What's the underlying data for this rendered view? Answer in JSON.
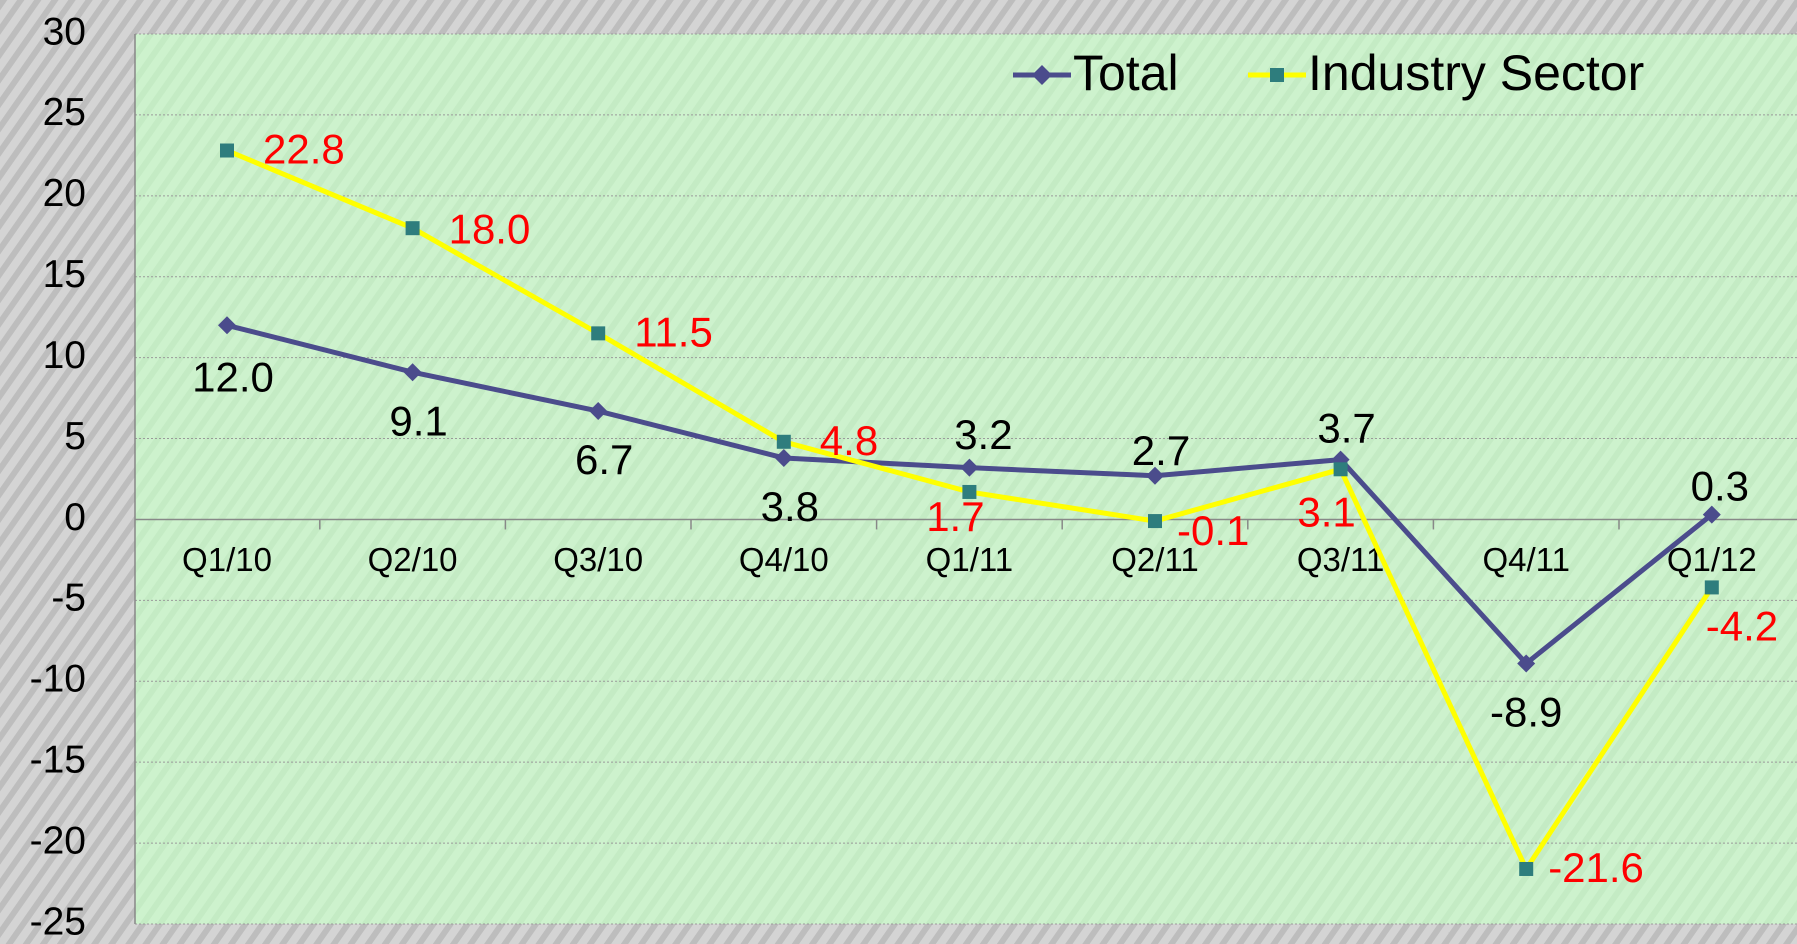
{
  "chart_data": {
    "type": "line",
    "categories": [
      "Q1/10",
      "Q2/10",
      "Q3/10",
      "Q4/10",
      "Q1/11",
      "Q2/11",
      "Q3/11",
      "Q4/11",
      "Q1/12"
    ],
    "series": [
      {
        "name": "Total",
        "color": "#4b4c8c",
        "marker_color": "#4b4c8c",
        "label_color": "#000000",
        "values": [
          12,
          9.1,
          6.7,
          3.8,
          3.2,
          2.7,
          3.7,
          -8.9,
          0.3
        ],
        "value_labels": [
          "12.0",
          "9.1",
          "6.7",
          "3.8",
          "3.2",
          "2.7",
          "3.7",
          "-8.9",
          "0.3"
        ]
      },
      {
        "name": "Industry Sector",
        "color": "#ffff00",
        "marker_color": "#2e7d7d",
        "label_color": "#ff0000",
        "values": [
          22.8,
          18,
          11.5,
          4.8,
          1.7,
          -0.1,
          3.1,
          -21.6,
          -4.2
        ],
        "value_labels": [
          "22.8",
          "18.0",
          "11.5",
          "4.8",
          "1.7",
          "-0.1",
          "3.1",
          "-21.6",
          "-4.2"
        ]
      }
    ],
    "ylim": [
      -25,
      30
    ],
    "yticks": [
      -25,
      -20,
      -15,
      -10,
      -5,
      0,
      5,
      10,
      15,
      20,
      25,
      30
    ],
    "grid": true,
    "legend": "top-right"
  }
}
